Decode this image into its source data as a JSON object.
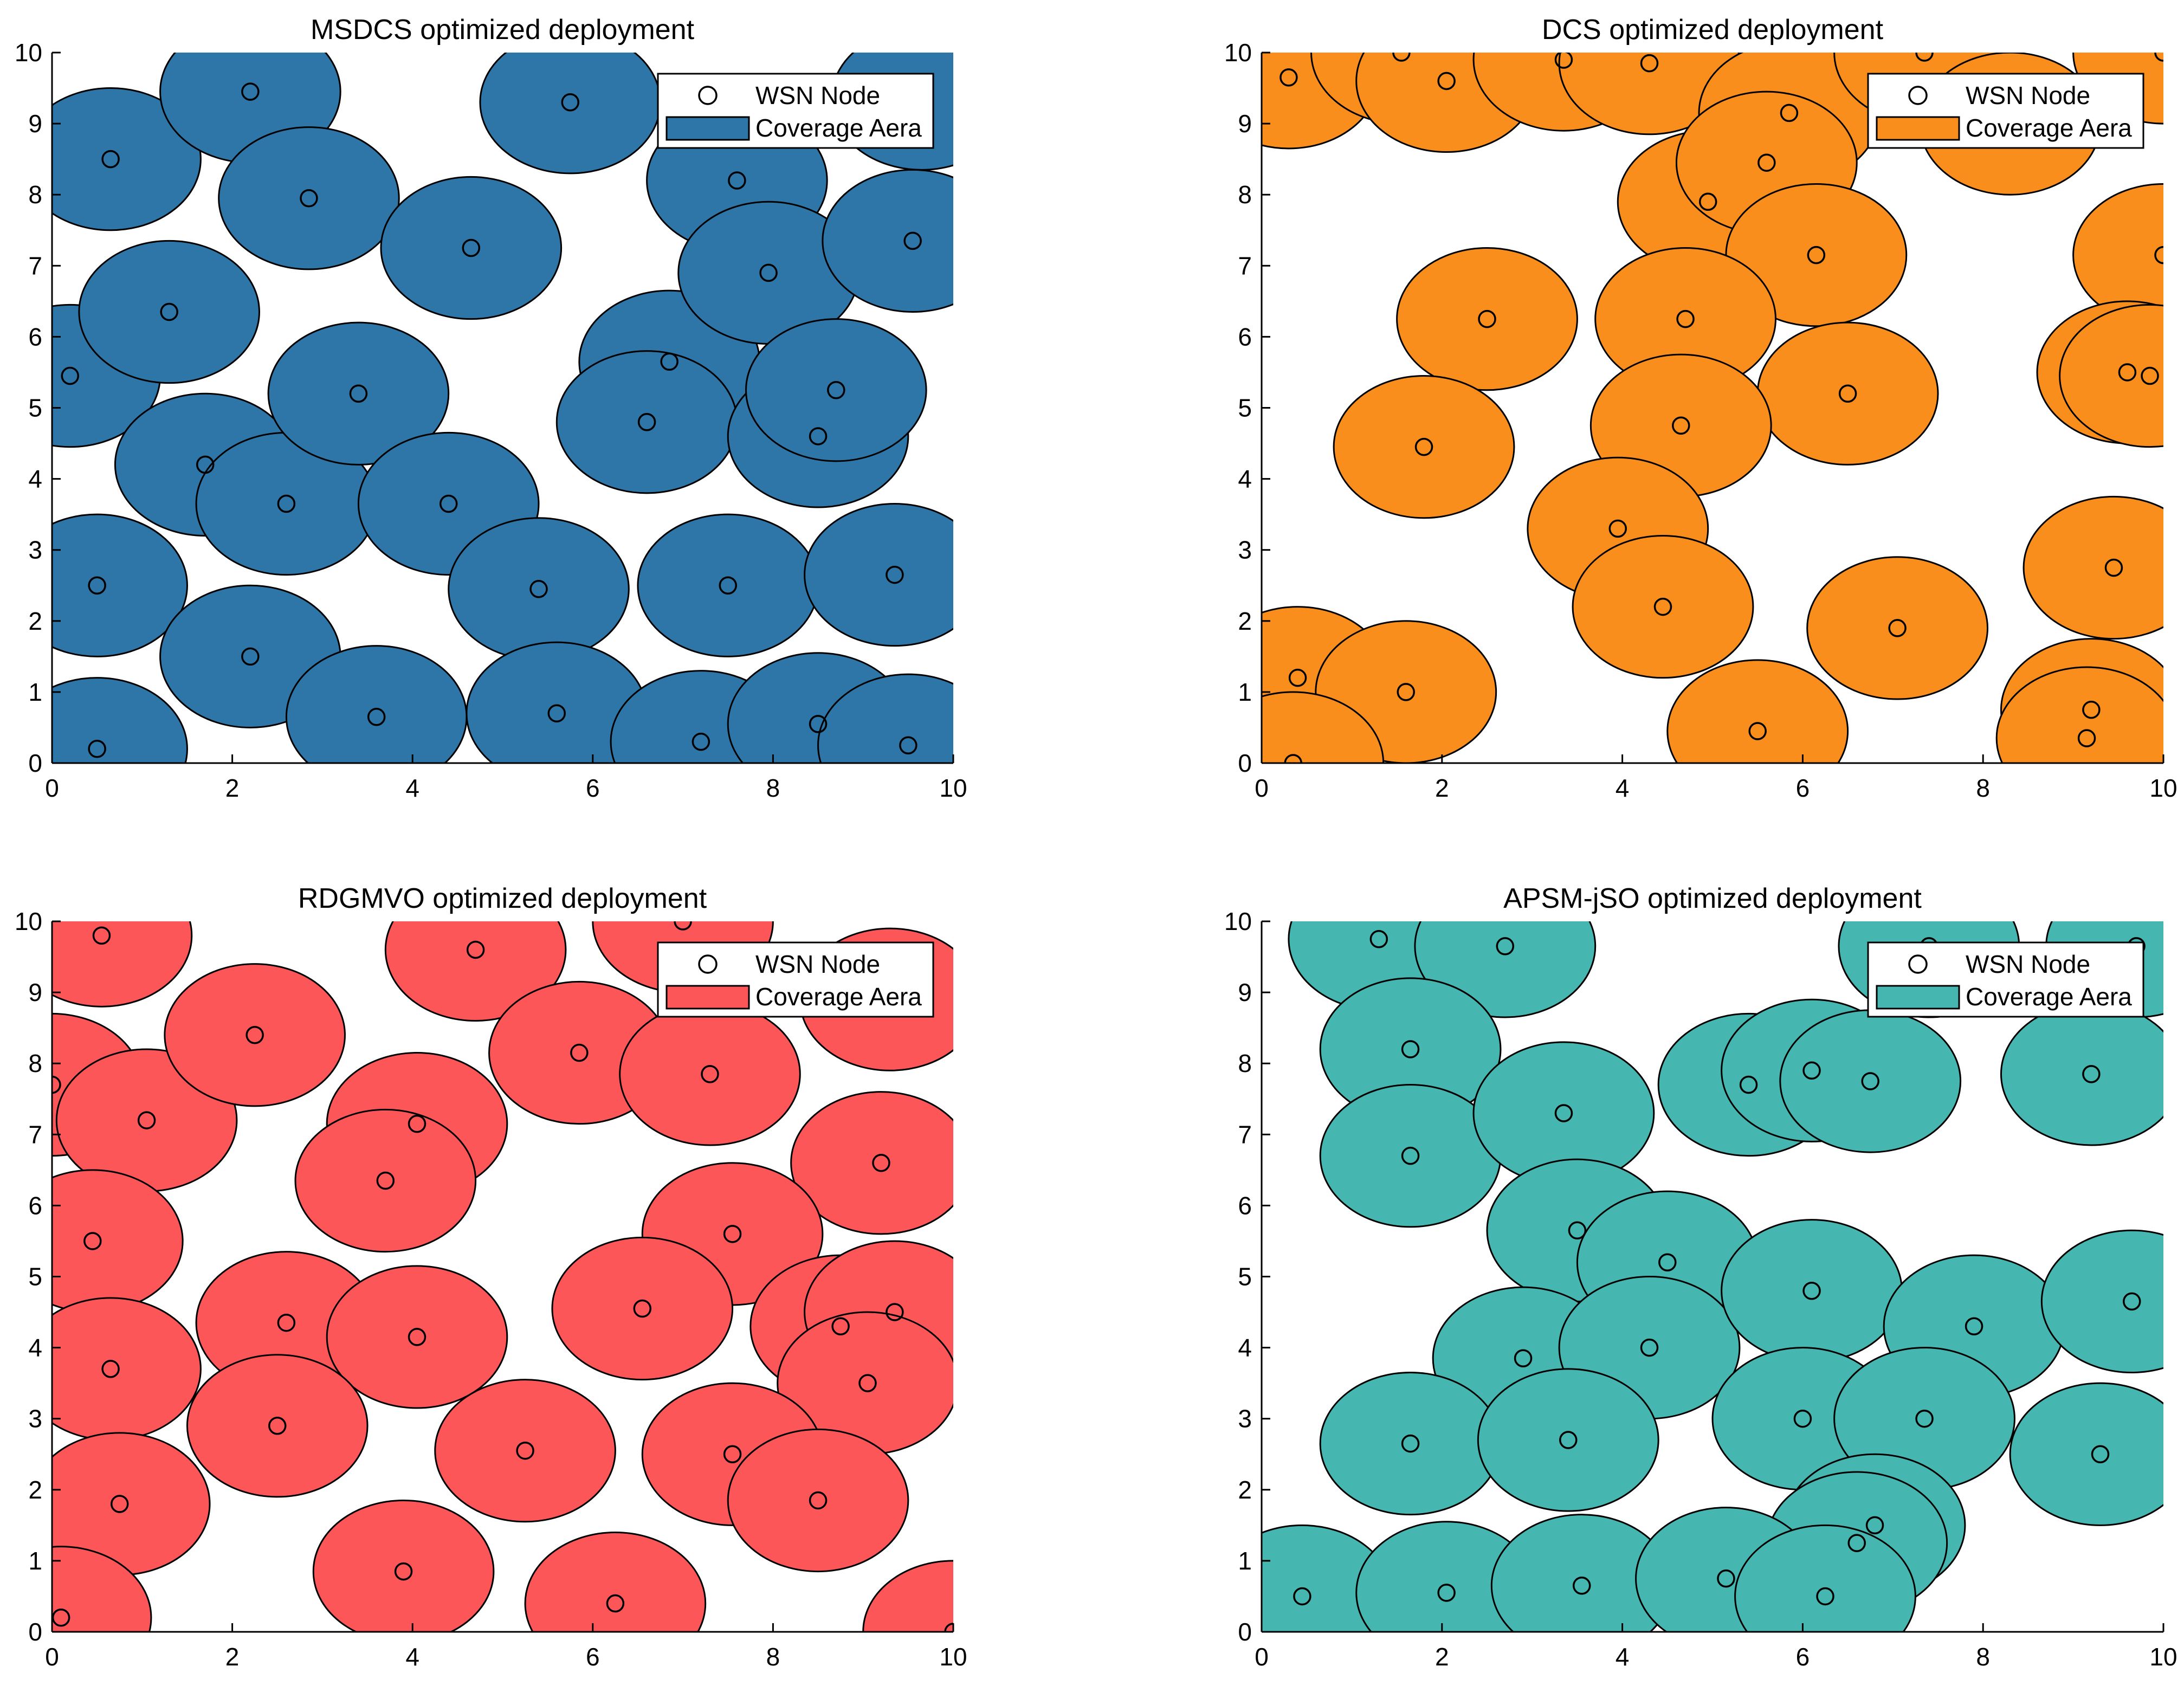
{
  "chart_data": [
    {
      "type": "scatter",
      "title": "MSDCS optimized deployment",
      "xlabel": "",
      "ylabel": "",
      "xlim": [
        0,
        10
      ],
      "ylim": [
        0,
        10
      ],
      "xticks": [
        0,
        2,
        4,
        6,
        8,
        10
      ],
      "yticks": [
        0,
        1,
        2,
        3,
        4,
        5,
        6,
        7,
        8,
        9,
        10
      ],
      "coverage_radius": 1.0,
      "color": "#2E75A8",
      "legend": {
        "position": "top-right",
        "entries": [
          "WSN Node",
          "Coverage Aera"
        ]
      },
      "nodes": [
        [
          0.5,
          0.2
        ],
        [
          0.5,
          2.5
        ],
        [
          0.2,
          5.45
        ],
        [
          0.65,
          8.5
        ],
        [
          2.2,
          9.45
        ],
        [
          1.3,
          6.35
        ],
        [
          1.7,
          4.2
        ],
        [
          2.2,
          1.5
        ],
        [
          2.6,
          3.65
        ],
        [
          2.85,
          7.95
        ],
        [
          3.6,
          0.65
        ],
        [
          3.4,
          5.2
        ],
        [
          4.4,
          3.65
        ],
        [
          4.65,
          7.25
        ],
        [
          5.4,
          2.45
        ],
        [
          5.6,
          0.7
        ],
        [
          5.75,
          9.3
        ],
        [
          6.85,
          5.65
        ],
        [
          6.6,
          4.8
        ],
        [
          7.5,
          2.5
        ],
        [
          7.2,
          0.3
        ],
        [
          7.6,
          8.2
        ],
        [
          7.95,
          6.9
        ],
        [
          8.5,
          0.55
        ],
        [
          8.5,
          4.6
        ],
        [
          8.7,
          5.25
        ],
        [
          9.5,
          0.25
        ],
        [
          9.35,
          2.65
        ],
        [
          9.55,
          7.35
        ],
        [
          9.65,
          9.35
        ]
      ]
    },
    {
      "type": "scatter",
      "title": "DCS optimized deployment",
      "xlabel": "",
      "ylabel": "",
      "xlim": [
        0,
        10
      ],
      "ylim": [
        0,
        10
      ],
      "xticks": [
        0,
        2,
        4,
        6,
        8,
        10
      ],
      "yticks": [
        0,
        1,
        2,
        3,
        4,
        5,
        6,
        7,
        8,
        9,
        10
      ],
      "coverage_radius": 1.0,
      "color": "#F98E1D",
      "legend": {
        "position": "top-right",
        "entries": [
          "WSN Node",
          "Coverage Aera"
        ]
      },
      "nodes": [
        [
          0.3,
          9.65
        ],
        [
          1.55,
          10.0
        ],
        [
          2.05,
          9.6
        ],
        [
          3.35,
          9.9
        ],
        [
          4.3,
          9.85
        ],
        [
          5.85,
          9.15
        ],
        [
          7.35,
          10.0
        ],
        [
          10.0,
          10.0
        ],
        [
          8.3,
          9.0
        ],
        [
          4.95,
          7.9
        ],
        [
          5.6,
          8.45
        ],
        [
          6.15,
          7.15
        ],
        [
          10.0,
          7.15
        ],
        [
          2.5,
          6.25
        ],
        [
          4.7,
          6.25
        ],
        [
          6.5,
          5.2
        ],
        [
          9.6,
          5.5
        ],
        [
          9.85,
          5.45
        ],
        [
          1.8,
          4.45
        ],
        [
          4.65,
          4.75
        ],
        [
          3.95,
          3.3
        ],
        [
          4.45,
          2.2
        ],
        [
          9.45,
          2.75
        ],
        [
          7.05,
          1.9
        ],
        [
          0.4,
          1.2
        ],
        [
          1.6,
          1.0
        ],
        [
          0.35,
          0.0
        ],
        [
          5.5,
          0.45
        ],
        [
          9.2,
          0.75
        ],
        [
          9.15,
          0.35
        ]
      ]
    },
    {
      "type": "scatter",
      "title": "RDGMVO optimized deployment",
      "xlabel": "",
      "ylabel": "",
      "xlim": [
        0,
        10
      ],
      "ylim": [
        0,
        10
      ],
      "xticks": [
        0,
        2,
        4,
        6,
        8,
        10
      ],
      "yticks": [
        0,
        1,
        2,
        3,
        4,
        5,
        6,
        7,
        8,
        9,
        10
      ],
      "coverage_radius": 1.0,
      "color": "#FC5659",
      "legend": {
        "position": "top-right",
        "entries": [
          "WSN Node",
          "Coverage Aera"
        ]
      },
      "nodes": [
        [
          0.55,
          9.8
        ],
        [
          4.7,
          9.6
        ],
        [
          7.0,
          10.0
        ],
        [
          9.3,
          8.9
        ],
        [
          0.0,
          7.7
        ],
        [
          1.05,
          7.2
        ],
        [
          2.25,
          8.4
        ],
        [
          4.05,
          7.15
        ],
        [
          3.7,
          6.35
        ],
        [
          5.85,
          8.15
        ],
        [
          7.3,
          7.85
        ],
        [
          9.2,
          6.6
        ],
        [
          0.45,
          5.5
        ],
        [
          7.55,
          5.6
        ],
        [
          0.65,
          3.7
        ],
        [
          2.6,
          4.35
        ],
        [
          4.05,
          4.15
        ],
        [
          6.55,
          4.55
        ],
        [
          8.75,
          4.3
        ],
        [
          9.35,
          4.5
        ],
        [
          9.05,
          3.5
        ],
        [
          2.5,
          2.9
        ],
        [
          5.25,
          2.55
        ],
        [
          7.55,
          2.5
        ],
        [
          0.75,
          1.8
        ],
        [
          8.5,
          1.85
        ],
        [
          3.9,
          0.85
        ],
        [
          6.25,
          0.4
        ],
        [
          0.1,
          0.2
        ],
        [
          10.0,
          0.0
        ]
      ]
    },
    {
      "type": "scatter",
      "title": "APSM-jSO optimized deployment",
      "xlabel": "",
      "ylabel": "",
      "xlim": [
        0,
        10
      ],
      "ylim": [
        0,
        10
      ],
      "xticks": [
        0,
        2,
        4,
        6,
        8,
        10
      ],
      "yticks": [
        0,
        1,
        2,
        3,
        4,
        5,
        6,
        7,
        8,
        9,
        10
      ],
      "coverage_radius": 1.0,
      "color": "#46B7B0",
      "legend": {
        "position": "top-right",
        "entries": [
          "WSN Node",
          "Coverage Aera"
        ]
      },
      "nodes": [
        [
          1.3,
          9.75
        ],
        [
          2.7,
          9.65
        ],
        [
          7.4,
          9.65
        ],
        [
          9.7,
          9.65
        ],
        [
          1.65,
          8.2
        ],
        [
          1.65,
          6.7
        ],
        [
          3.35,
          7.3
        ],
        [
          5.4,
          7.7
        ],
        [
          6.1,
          7.9
        ],
        [
          6.75,
          7.75
        ],
        [
          9.2,
          7.85
        ],
        [
          3.5,
          5.65
        ],
        [
          4.5,
          5.2
        ],
        [
          2.9,
          3.85
        ],
        [
          4.3,
          4.0
        ],
        [
          6.1,
          4.8
        ],
        [
          7.9,
          4.3
        ],
        [
          9.65,
          4.65
        ],
        [
          1.65,
          2.65
        ],
        [
          3.4,
          2.7
        ],
        [
          6.0,
          3.0
        ],
        [
          7.35,
          3.0
        ],
        [
          9.3,
          2.5
        ],
        [
          6.8,
          1.5
        ],
        [
          6.6,
          1.25
        ],
        [
          0.45,
          0.5
        ],
        [
          2.05,
          0.55
        ],
        [
          3.55,
          0.65
        ],
        [
          5.15,
          0.75
        ],
        [
          6.25,
          0.5
        ]
      ]
    }
  ]
}
